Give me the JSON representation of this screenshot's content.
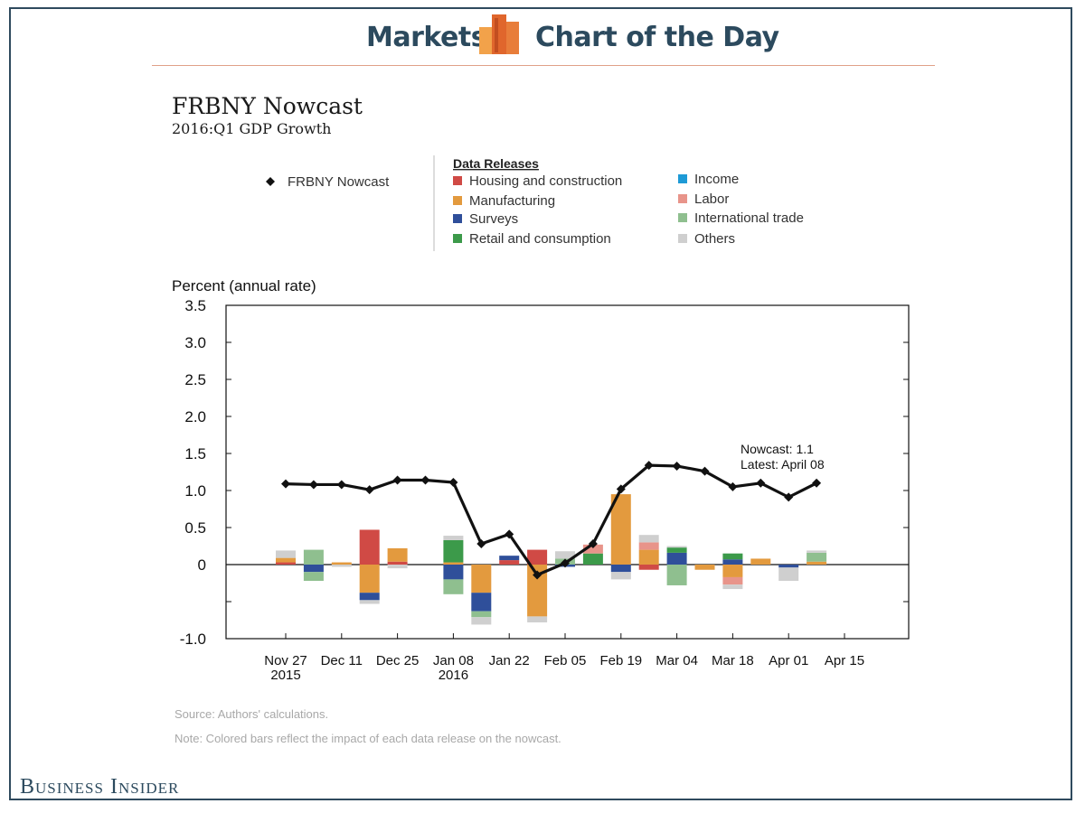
{
  "header": {
    "left": "Markets",
    "right": "Chart of the Day"
  },
  "brand": "Business Insider",
  "source": "Source: Authors' calculations.",
  "note": "Note: Colored bars reflect the impact of each data release on the nowcast.",
  "colors": {
    "frame": "#2f4a5e",
    "header_text": "#2c4a5e",
    "line": "#111111"
  },
  "chart_data": {
    "type": "bar",
    "title": "FRBNY Nowcast",
    "subtitle": "2016:Q1 GDP Growth",
    "ylabel": "Percent (annual rate)",
    "ylim": [
      -1.0,
      3.5
    ],
    "yticks": [
      {
        "value": 3.5,
        "label": "3.5"
      },
      {
        "value": 3.0,
        "label": "3.0"
      },
      {
        "value": 2.5,
        "label": "2.5"
      },
      {
        "value": 2.0,
        "label": "2.0"
      },
      {
        "value": 1.5,
        "label": "1.5"
      },
      {
        "value": 1.0,
        "label": "1.0"
      },
      {
        "value": 0.5,
        "label": "0.5"
      },
      {
        "value": 0,
        "label": "0"
      },
      {
        "value": -0.5,
        "label": ""
      },
      {
        "value": -1.0,
        "label": "-1.0"
      }
    ],
    "xticks": [
      "Nov 27",
      "Dec 11",
      "Dec 25",
      "Jan 08",
      "Jan 22",
      "Feb 05",
      "Feb 19",
      "Mar 04",
      "Mar 18",
      "Apr 01",
      "Apr 15"
    ],
    "xtick_sublabels": [
      "2015",
      "",
      "",
      "2016",
      "",
      "",
      "",
      "",
      "",
      "",
      ""
    ],
    "legend_line": "FRBNY Nowcast",
    "legend_heading": "Data Releases",
    "categories": [
      {
        "name": "Housing and construction",
        "color": "#d04a45"
      },
      {
        "name": "Manufacturing",
        "color": "#e39a3e"
      },
      {
        "name": "Surveys",
        "color": "#2f4f9a"
      },
      {
        "name": "Retail and consumption",
        "color": "#3c9a4a"
      },
      {
        "name": "Income",
        "color": "#1e9ad6"
      },
      {
        "name": "Labor",
        "color": "#e8948a"
      },
      {
        "name": "International trade",
        "color": "#8fbf8f"
      },
      {
        "name": "Others",
        "color": "#cfcfcf"
      }
    ],
    "weeks": [
      {
        "nowcast": 1.09,
        "segments": [
          {
            "cat": "Housing and construction",
            "value": 0.03
          },
          {
            "cat": "Manufacturing",
            "value": 0.06
          },
          {
            "cat": "Others",
            "value": 0.1
          }
        ]
      },
      {
        "nowcast": 1.08,
        "segments": [
          {
            "cat": "International trade",
            "value": 0.2
          },
          {
            "cat": "Surveys",
            "value": -0.1
          },
          {
            "cat": "International trade",
            "value": -0.12
          }
        ]
      },
      {
        "nowcast": 1.08,
        "segments": [
          {
            "cat": "Manufacturing",
            "value": 0.03
          },
          {
            "cat": "Others",
            "value": -0.03
          }
        ]
      },
      {
        "nowcast": 1.01,
        "segments": [
          {
            "cat": "Housing and construction",
            "value": 0.47
          },
          {
            "cat": "Manufacturing",
            "value": -0.38
          },
          {
            "cat": "Surveys",
            "value": -0.1
          },
          {
            "cat": "Others",
            "value": -0.05
          }
        ]
      },
      {
        "nowcast": 1.14,
        "segments": [
          {
            "cat": "Housing and construction",
            "value": 0.04
          },
          {
            "cat": "Manufacturing",
            "value": 0.18
          },
          {
            "cat": "Others",
            "value": -0.05
          }
        ]
      },
      {
        "nowcast": 1.14,
        "segments": []
      },
      {
        "nowcast": 1.11,
        "segments": [
          {
            "cat": "Manufacturing",
            "value": 0.03
          },
          {
            "cat": "Retail and consumption",
            "value": 0.3
          },
          {
            "cat": "Others",
            "value": 0.06
          },
          {
            "cat": "Surveys",
            "value": -0.2
          },
          {
            "cat": "International trade",
            "value": -0.2
          }
        ]
      },
      {
        "nowcast": 0.28,
        "segments": [
          {
            "cat": "Manufacturing",
            "value": -0.38
          },
          {
            "cat": "Surveys",
            "value": -0.25
          },
          {
            "cat": "International trade",
            "value": -0.08
          },
          {
            "cat": "Others",
            "value": -0.1
          }
        ]
      },
      {
        "nowcast": 0.41,
        "segments": [
          {
            "cat": "Housing and construction",
            "value": 0.06
          },
          {
            "cat": "Surveys",
            "value": 0.06
          }
        ]
      },
      {
        "nowcast": -0.14,
        "segments": [
          {
            "cat": "Housing and construction",
            "value": 0.2
          },
          {
            "cat": "Manufacturing",
            "value": -0.7
          },
          {
            "cat": "Others",
            "value": -0.08
          }
        ]
      },
      {
        "nowcast": 0.02,
        "segments": [
          {
            "cat": "International trade",
            "value": 0.08
          },
          {
            "cat": "Others",
            "value": 0.1
          },
          {
            "cat": "Surveys",
            "value": -0.03
          }
        ]
      },
      {
        "nowcast": 0.28,
        "segments": [
          {
            "cat": "Retail and consumption",
            "value": 0.15
          },
          {
            "cat": "Labor",
            "value": 0.12
          }
        ]
      },
      {
        "nowcast": 1.02,
        "segments": [
          {
            "cat": "Manufacturing",
            "value": 0.95
          },
          {
            "cat": "Surveys",
            "value": -0.1
          },
          {
            "cat": "Others",
            "value": -0.1
          }
        ]
      },
      {
        "nowcast": 1.34,
        "segments": [
          {
            "cat": "Manufacturing",
            "value": 0.2
          },
          {
            "cat": "Labor",
            "value": 0.1
          },
          {
            "cat": "Others",
            "value": 0.1
          },
          {
            "cat": "Housing and construction",
            "value": -0.07
          }
        ]
      },
      {
        "nowcast": 1.33,
        "segments": [
          {
            "cat": "Surveys",
            "value": 0.16
          },
          {
            "cat": "Retail and consumption",
            "value": 0.07
          },
          {
            "cat": "Others",
            "value": 0.02
          },
          {
            "cat": "International trade",
            "value": -0.28
          }
        ]
      },
      {
        "nowcast": 1.26,
        "segments": [
          {
            "cat": "Manufacturing",
            "value": -0.07
          }
        ]
      },
      {
        "nowcast": 1.05,
        "segments": [
          {
            "cat": "Surveys",
            "value": 0.07
          },
          {
            "cat": "Retail and consumption",
            "value": 0.08
          },
          {
            "cat": "Manufacturing",
            "value": -0.17
          },
          {
            "cat": "Labor",
            "value": -0.1
          },
          {
            "cat": "Others",
            "value": -0.06
          }
        ]
      },
      {
        "nowcast": 1.1,
        "segments": [
          {
            "cat": "Manufacturing",
            "value": 0.08
          }
        ]
      },
      {
        "nowcast": 0.91,
        "segments": [
          {
            "cat": "Surveys",
            "value": -0.04
          },
          {
            "cat": "Others",
            "value": -0.18
          }
        ]
      },
      {
        "nowcast": 1.1,
        "segments": [
          {
            "cat": "Manufacturing",
            "value": 0.04
          },
          {
            "cat": "International trade",
            "value": 0.12
          },
          {
            "cat": "Others",
            "value": 0.03
          }
        ]
      }
    ],
    "annotation": [
      "Nowcast: 1.1",
      "Latest: April 08"
    ],
    "grid": false,
    "legend_position": "top"
  }
}
